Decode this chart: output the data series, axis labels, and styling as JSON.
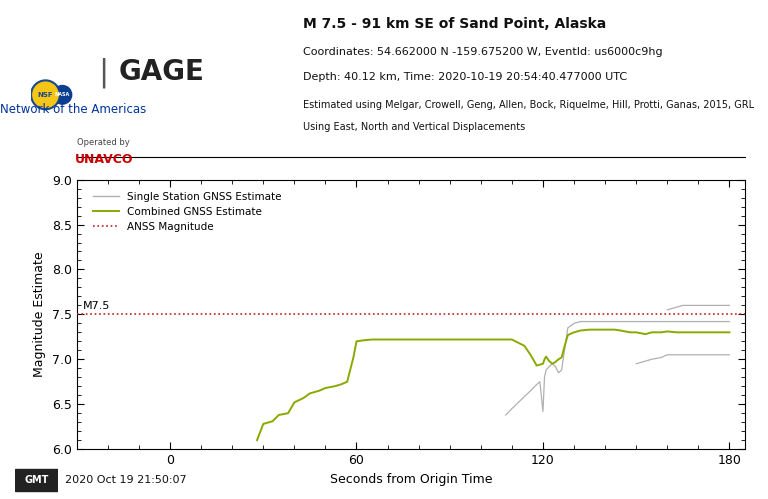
{
  "title_line1": "M 7.5 - 91 km SE of Sand Point, Alaska",
  "title_line2": "Coordinates: 54.662000 N -159.675200 W, EventId: us6000c9hg",
  "title_line3": "Depth: 40.12 km, Time: 2020-10-19 20:54:40.477000 UTC",
  "title_line4": "Estimated using Melgar, Crowell, Geng, Allen, Bock, Riquelme, Hill, Protti, Ganas, 2015, GRL",
  "title_line5": "Using East, North and Vertical Displacements",
  "xlabel": "Seconds from Origin Time",
  "ylabel": "Magnitude Estimate",
  "xlim": [
    -30,
    185
  ],
  "ylim": [
    6.0,
    9.0
  ],
  "xticks": [
    0,
    60,
    120,
    180
  ],
  "yticks": [
    6.0,
    6.5,
    7.0,
    7.5,
    8.0,
    8.5,
    9.0
  ],
  "anss_magnitude": 7.5,
  "anss_color": "#bb2222",
  "anss_label": "ANSS Magnitude",
  "single_station_color": "#b0b0b0",
  "single_station_label": "Single Station GNSS Estimate",
  "combined_color": "#88aa00",
  "combined_label": "Combined GNSS Estimate",
  "timestamp": "2020 Oct 19 21:50:07",
  "background_color": "#ffffff",
  "combined_x": [
    28,
    30,
    33,
    35,
    38,
    40,
    43,
    45,
    48,
    50,
    53,
    55,
    57,
    59,
    60,
    62,
    65,
    70,
    75,
    80,
    85,
    90,
    95,
    100,
    105,
    110,
    114,
    116,
    118,
    120,
    120.5,
    121,
    122,
    123,
    124,
    125,
    126,
    127,
    128,
    130,
    132,
    135,
    138,
    140,
    143,
    145,
    148,
    150,
    153,
    155,
    158,
    160,
    163,
    165,
    168,
    170,
    173,
    175,
    178,
    180
  ],
  "combined_y": [
    6.1,
    6.28,
    6.31,
    6.38,
    6.4,
    6.52,
    6.57,
    6.62,
    6.65,
    6.68,
    6.7,
    6.72,
    6.75,
    7.02,
    7.2,
    7.21,
    7.22,
    7.22,
    7.22,
    7.22,
    7.22,
    7.22,
    7.22,
    7.22,
    7.22,
    7.22,
    7.15,
    7.05,
    6.93,
    6.95,
    7.0,
    7.03,
    6.98,
    6.95,
    6.97,
    7.0,
    7.02,
    7.15,
    7.27,
    7.3,
    7.32,
    7.33,
    7.33,
    7.33,
    7.33,
    7.32,
    7.3,
    7.3,
    7.28,
    7.3,
    7.3,
    7.31,
    7.3,
    7.3,
    7.3,
    7.3,
    7.3,
    7.3,
    7.3,
    7.3
  ],
  "single_x_set1": [
    108,
    110,
    113,
    116,
    118,
    119,
    120,
    120.5,
    121,
    122,
    123,
    124,
    125,
    126,
    128,
    130,
    132,
    135,
    138,
    140,
    143,
    145,
    148,
    150,
    153,
    155,
    158,
    160,
    163,
    165,
    168,
    170,
    173,
    175,
    178,
    180
  ],
  "single_y_set1": [
    6.38,
    6.45,
    6.55,
    6.65,
    6.72,
    6.75,
    6.42,
    6.8,
    6.88,
    6.92,
    6.95,
    6.92,
    6.85,
    6.88,
    7.35,
    7.4,
    7.42,
    7.42,
    7.42,
    7.42,
    7.42,
    7.42,
    7.42,
    7.42,
    7.42,
    7.42,
    7.42,
    7.42,
    7.42,
    7.42,
    7.42,
    7.42,
    7.42,
    7.42,
    7.42,
    7.42
  ],
  "single_x_set2": [
    150,
    153,
    155,
    158,
    160,
    163,
    165,
    168,
    170,
    173,
    175,
    178,
    180
  ],
  "single_y_set2": [
    6.95,
    6.98,
    7.0,
    7.02,
    7.05,
    7.05,
    7.05,
    7.05,
    7.05,
    7.05,
    7.05,
    7.05,
    7.05
  ],
  "single_x_set3": [
    160,
    163,
    165,
    168,
    170,
    173,
    175,
    178,
    180
  ],
  "single_y_set3": [
    7.55,
    7.58,
    7.6,
    7.6,
    7.6,
    7.6,
    7.6,
    7.6,
    7.6
  ],
  "gage_text": "GAGE",
  "network_text": "Network of the Americas",
  "operated_text": "Operated by",
  "unavco_text": "UNAVCO",
  "logo_text": "NSF NASA",
  "m75_label": "M7.5"
}
